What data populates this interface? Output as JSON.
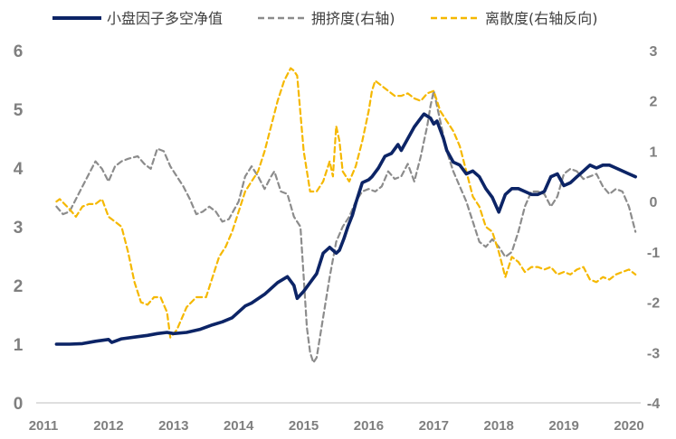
{
  "chart_data": {
    "type": "line",
    "title": "",
    "colors": {
      "navy": "#0c2466",
      "gray": "#8c8c8c",
      "gold": "#f5b800",
      "tick": "#7f7f7f",
      "axis": "#bfbfbf"
    },
    "left_axis": {
      "ylim": [
        0,
        6
      ],
      "ticks": [
        "0",
        "1",
        "2",
        "3",
        "4",
        "5",
        "6"
      ]
    },
    "right_axis": {
      "ylim": [
        -4,
        3
      ],
      "ticks": [
        "-4",
        "-3",
        "-2",
        "-1",
        "0",
        "1",
        "2",
        "3"
      ]
    },
    "x_axis": {
      "xlim": [
        2011,
        2020.25
      ],
      "ticks": [
        "2011",
        "2012",
        "2013",
        "2014",
        "2015",
        "2016",
        "2017",
        "2018",
        "2019",
        "2020"
      ]
    },
    "series": [
      {
        "name": "小盘因子多空净值",
        "axis": "left",
        "style": "solid",
        "color": "#0c2466",
        "x": [
          2011.2,
          2011.4,
          2011.6,
          2011.8,
          2012.0,
          2012.05,
          2012.2,
          2012.4,
          2012.6,
          2012.75,
          2012.9,
          2013.0,
          2013.2,
          2013.4,
          2013.6,
          2013.75,
          2013.9,
          2014.1,
          2014.2,
          2014.4,
          2014.5,
          2014.6,
          2014.75,
          2014.85,
          2014.9,
          2015.0,
          2015.1,
          2015.2,
          2015.3,
          2015.4,
          2015.5,
          2015.55,
          2015.62,
          2015.68,
          2015.75,
          2015.8,
          2015.9,
          2016.0,
          2016.05,
          2016.15,
          2016.25,
          2016.35,
          2016.45,
          2016.5,
          2016.6,
          2016.7,
          2016.8,
          2016.85,
          2016.95,
          2017.0,
          2017.05,
          2017.1,
          2017.15,
          2017.2,
          2017.3,
          2017.4,
          2017.5,
          2017.6,
          2017.7,
          2017.8,
          2017.9,
          2018.0,
          2018.1,
          2018.2,
          2018.3,
          2018.4,
          2018.5,
          2018.6,
          2018.7,
          2018.8,
          2018.9,
          2019.0,
          2019.1,
          2019.2,
          2019.3,
          2019.4,
          2019.5,
          2019.6,
          2019.7,
          2019.8,
          2019.9,
          2020.0,
          2020.1
        ],
        "values": [
          1.0,
          1.0,
          1.01,
          1.05,
          1.08,
          1.03,
          1.09,
          1.12,
          1.15,
          1.18,
          1.2,
          1.18,
          1.2,
          1.25,
          1.33,
          1.38,
          1.45,
          1.65,
          1.7,
          1.85,
          1.95,
          2.05,
          2.15,
          2.0,
          1.78,
          1.9,
          2.05,
          2.2,
          2.55,
          2.65,
          2.55,
          2.6,
          2.8,
          3.0,
          3.2,
          3.4,
          3.75,
          3.8,
          3.85,
          4.0,
          4.2,
          4.25,
          4.4,
          4.3,
          4.5,
          4.7,
          4.85,
          4.92,
          4.85,
          4.75,
          4.8,
          4.65,
          4.5,
          4.3,
          4.1,
          4.05,
          3.9,
          3.95,
          3.85,
          3.65,
          3.5,
          3.25,
          3.55,
          3.65,
          3.65,
          3.6,
          3.55,
          3.55,
          3.6,
          3.85,
          3.9,
          3.7,
          3.75,
          3.85,
          3.95,
          4.05,
          4.0,
          4.05,
          4.05,
          4.0,
          3.95,
          3.9,
          3.85
        ]
      },
      {
        "name": "拥挤度(右轴)",
        "axis": "right",
        "style": "dashed",
        "color": "#8c8c8c",
        "x": [
          2011.2,
          2011.3,
          2011.4,
          2011.6,
          2011.8,
          2011.9,
          2012.0,
          2012.1,
          2012.2,
          2012.3,
          2012.45,
          2012.55,
          2012.65,
          2012.75,
          2012.85,
          2012.95,
          2013.05,
          2013.15,
          2013.25,
          2013.35,
          2013.45,
          2013.55,
          2013.65,
          2013.75,
          2013.85,
          2014.0,
          2014.1,
          2014.2,
          2014.3,
          2014.4,
          2014.5,
          2014.55,
          2014.65,
          2014.75,
          2014.85,
          2014.95,
          2015.0,
          2015.05,
          2015.1,
          2015.15,
          2015.2,
          2015.3,
          2015.4,
          2015.5,
          2015.6,
          2015.7,
          2015.8,
          2015.9,
          2016.0,
          2016.1,
          2016.2,
          2016.3,
          2016.4,
          2016.5,
          2016.6,
          2016.7,
          2016.8,
          2016.85,
          2016.9,
          2016.95,
          2017.0,
          2017.05,
          2017.1,
          2017.2,
          2017.3,
          2017.4,
          2017.5,
          2017.6,
          2017.7,
          2017.8,
          2017.9,
          2018.0,
          2018.1,
          2018.2,
          2018.3,
          2018.4,
          2018.5,
          2018.6,
          2018.7,
          2018.8,
          2018.9,
          2019.0,
          2019.1,
          2019.2,
          2019.3,
          2019.4,
          2019.5,
          2019.6,
          2019.7,
          2019.8,
          2019.9,
          2020.0,
          2020.1
        ],
        "values": [
          -0.1,
          -0.25,
          -0.2,
          0.3,
          0.8,
          0.65,
          0.4,
          0.7,
          0.8,
          0.85,
          0.9,
          0.75,
          0.65,
          1.05,
          1.0,
          0.7,
          0.5,
          0.3,
          0.05,
          -0.25,
          -0.2,
          -0.1,
          -0.2,
          -0.4,
          -0.35,
          0.0,
          0.5,
          0.7,
          0.5,
          0.25,
          0.5,
          0.6,
          0.2,
          0.15,
          -0.3,
          -0.5,
          -1.5,
          -2.5,
          -3.0,
          -3.2,
          -3.1,
          -2.3,
          -1.5,
          -0.8,
          -0.5,
          -0.3,
          0.0,
          0.2,
          0.25,
          0.2,
          0.3,
          0.6,
          0.45,
          0.5,
          0.75,
          0.4,
          0.9,
          1.2,
          1.5,
          1.9,
          2.2,
          1.9,
          1.6,
          1.0,
          0.6,
          0.3,
          0.0,
          -0.4,
          -0.8,
          -0.9,
          -0.75,
          -0.9,
          -1.1,
          -1.0,
          -0.6,
          -0.1,
          0.2,
          0.2,
          0.15,
          -0.1,
          0.1,
          0.55,
          0.65,
          0.6,
          0.45,
          0.5,
          0.55,
          0.3,
          0.15,
          0.25,
          0.2,
          -0.1,
          -0.6
        ]
      },
      {
        "name": "离散度(右轴反向)",
        "axis": "right",
        "style": "dashed",
        "color": "#f5b800",
        "x": [
          2011.2,
          2011.25,
          2011.4,
          2011.5,
          2011.6,
          2011.7,
          2011.8,
          2011.9,
          2012.0,
          2012.1,
          2012.2,
          2012.3,
          2012.4,
          2012.5,
          2012.6,
          2012.7,
          2012.8,
          2012.9,
          2012.95,
          2013.05,
          2013.2,
          2013.35,
          2013.5,
          2013.6,
          2013.7,
          2013.8,
          2013.9,
          2014.0,
          2014.1,
          2014.2,
          2014.3,
          2014.4,
          2014.5,
          2014.6,
          2014.7,
          2014.8,
          2014.85,
          2014.9,
          2015.0,
          2015.1,
          2015.2,
          2015.3,
          2015.4,
          2015.45,
          2015.5,
          2015.55,
          2015.6,
          2015.7,
          2015.8,
          2015.9,
          2016.0,
          2016.05,
          2016.1,
          2016.2,
          2016.3,
          2016.4,
          2016.5,
          2016.6,
          2016.7,
          2016.8,
          2016.9,
          2017.0,
          2017.1,
          2017.2,
          2017.3,
          2017.4,
          2017.5,
          2017.6,
          2017.7,
          2017.8,
          2017.9,
          2018.0,
          2018.1,
          2018.2,
          2018.3,
          2018.4,
          2018.5,
          2018.6,
          2018.7,
          2018.8,
          2018.9,
          2019.0,
          2019.1,
          2019.2,
          2019.3,
          2019.4,
          2019.5,
          2019.6,
          2019.7,
          2019.8,
          2019.9,
          2020.0,
          2020.1
        ],
        "values": [
          0.0,
          0.05,
          -0.15,
          -0.3,
          -0.1,
          -0.05,
          -0.05,
          0.05,
          -0.3,
          -0.4,
          -0.5,
          -1.0,
          -1.6,
          -2.0,
          -2.05,
          -1.9,
          -1.9,
          -2.2,
          -2.7,
          -2.55,
          -2.1,
          -1.9,
          -1.9,
          -1.5,
          -1.1,
          -0.9,
          -0.6,
          -0.2,
          0.2,
          0.4,
          0.6,
          1.0,
          1.5,
          2.0,
          2.4,
          2.65,
          2.6,
          2.5,
          1.0,
          0.2,
          0.2,
          0.4,
          0.8,
          0.5,
          1.5,
          1.2,
          0.6,
          0.4,
          0.7,
          1.2,
          1.8,
          2.2,
          2.4,
          2.3,
          2.2,
          2.1,
          2.1,
          2.15,
          2.05,
          2.0,
          2.15,
          2.2,
          1.8,
          1.6,
          1.4,
          1.1,
          0.6,
          0.1,
          -0.1,
          -0.5,
          -0.6,
          -1.0,
          -1.5,
          -1.1,
          -1.2,
          -1.4,
          -1.3,
          -1.3,
          -1.35,
          -1.3,
          -1.45,
          -1.4,
          -1.45,
          -1.35,
          -1.3,
          -1.55,
          -1.6,
          -1.5,
          -1.55,
          -1.45,
          -1.4,
          -1.35,
          -1.45
        ]
      }
    ]
  }
}
